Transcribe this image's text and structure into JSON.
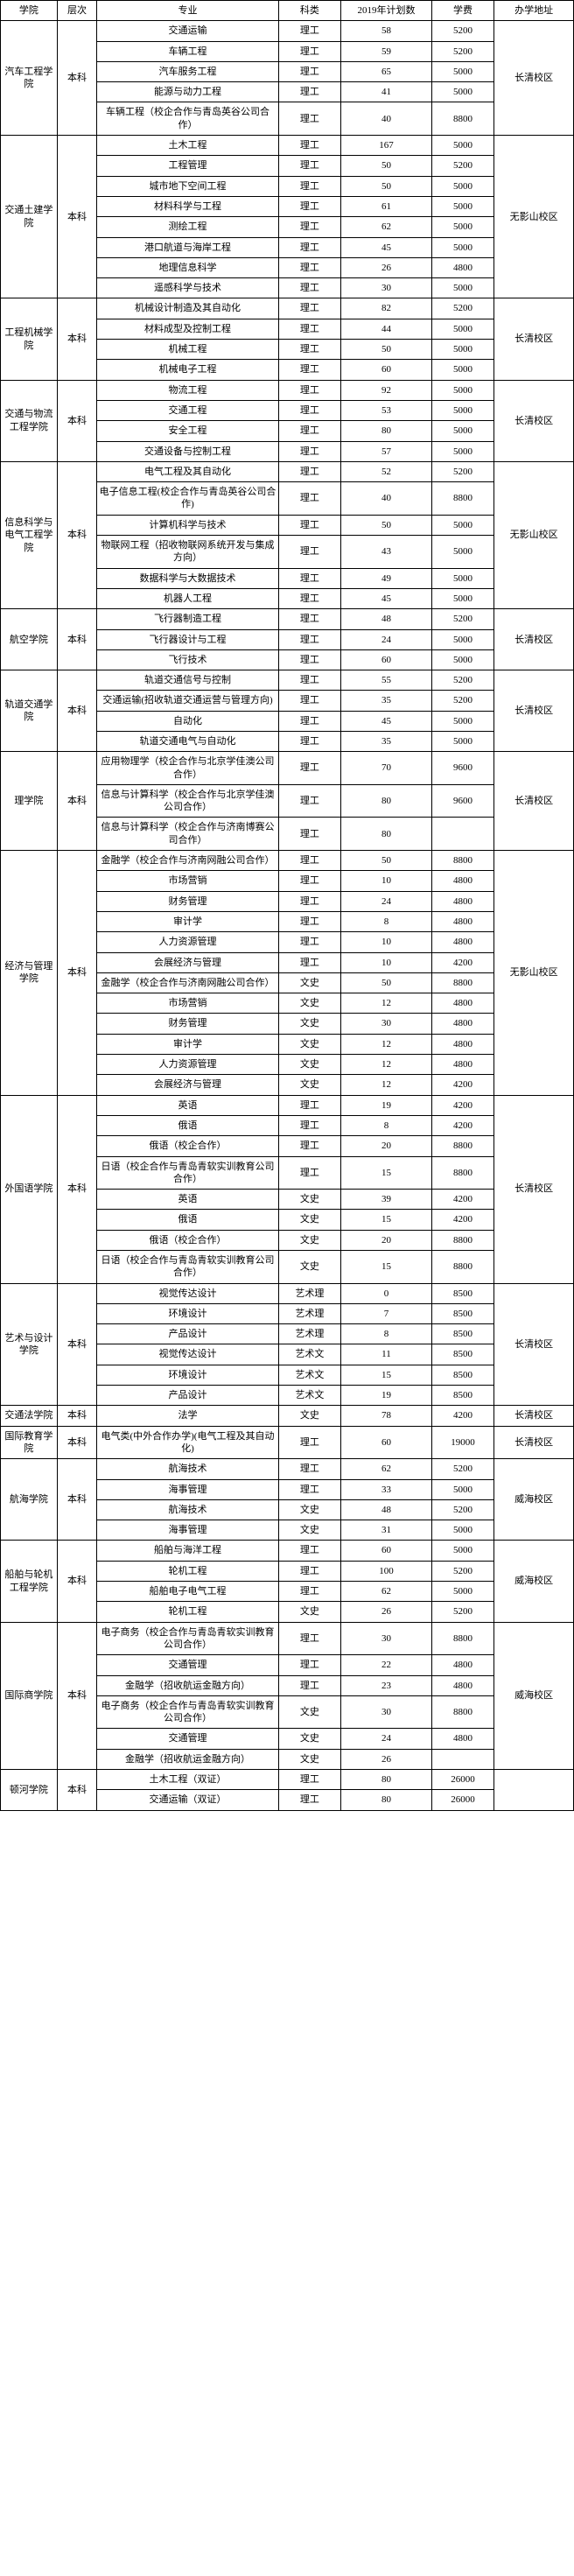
{
  "headers": {
    "college": "学院",
    "level": "层次",
    "major": "专业",
    "category": "科类",
    "plan": "2019年计划数",
    "fee": "学费",
    "campus": "办学地址"
  },
  "colleges": [
    {
      "name": "汽车工程学院",
      "level": "本科",
      "campus": "长清校区",
      "rows": [
        {
          "major": "交通运输",
          "cat": "理工",
          "plan": "58",
          "fee": "5200"
        },
        {
          "major": "车辆工程",
          "cat": "理工",
          "plan": "59",
          "fee": "5200"
        },
        {
          "major": "汽车服务工程",
          "cat": "理工",
          "plan": "65",
          "fee": "5000"
        },
        {
          "major": "能源与动力工程",
          "cat": "理工",
          "plan": "41",
          "fee": "5000"
        },
        {
          "major": "车辆工程（校企合作与青岛英谷公司合作）",
          "cat": "理工",
          "plan": "40",
          "fee": "8800"
        }
      ]
    },
    {
      "name": "交通土建学院",
      "level": "本科",
      "campus": "无影山校区",
      "rows": [
        {
          "major": "土木工程",
          "cat": "理工",
          "plan": "167",
          "fee": "5000"
        },
        {
          "major": "工程管理",
          "cat": "理工",
          "plan": "50",
          "fee": "5200"
        },
        {
          "major": "城市地下空间工程",
          "cat": "理工",
          "plan": "50",
          "fee": "5000"
        },
        {
          "major": "材料科学与工程",
          "cat": "理工",
          "plan": "61",
          "fee": "5000"
        },
        {
          "major": "测绘工程",
          "cat": "理工",
          "plan": "62",
          "fee": "5000"
        },
        {
          "major": "港口航道与海岸工程",
          "cat": "理工",
          "plan": "45",
          "fee": "5000"
        },
        {
          "major": "地理信息科学",
          "cat": "理工",
          "plan": "26",
          "fee": "4800"
        },
        {
          "major": "遥感科学与技术",
          "cat": "理工",
          "plan": "30",
          "fee": "5000"
        }
      ]
    },
    {
      "name": "工程机械学院",
      "level": "本科",
      "campus": "长清校区",
      "rows": [
        {
          "major": "机械设计制造及其自动化",
          "cat": "理工",
          "plan": "82",
          "fee": "5200"
        },
        {
          "major": "材料成型及控制工程",
          "cat": "理工",
          "plan": "44",
          "fee": "5000"
        },
        {
          "major": "机械工程",
          "cat": "理工",
          "plan": "50",
          "fee": "5000"
        },
        {
          "major": "机械电子工程",
          "cat": "理工",
          "plan": "60",
          "fee": "5000"
        }
      ]
    },
    {
      "name": "交通与物流工程学院",
      "level": "本科",
      "campus": "长清校区",
      "rows": [
        {
          "major": "物流工程",
          "cat": "理工",
          "plan": "92",
          "fee": "5000"
        },
        {
          "major": "交通工程",
          "cat": "理工",
          "plan": "53",
          "fee": "5000"
        },
        {
          "major": "安全工程",
          "cat": "理工",
          "plan": "80",
          "fee": "5000"
        },
        {
          "major": "交通设备与控制工程",
          "cat": "理工",
          "plan": "57",
          "fee": "5000"
        }
      ]
    },
    {
      "name": "信息科学与电气工程学院",
      "level": "本科",
      "campus": "无影山校区",
      "rows": [
        {
          "major": "电气工程及其自动化",
          "cat": "理工",
          "plan": "52",
          "fee": "5200"
        },
        {
          "major": "电子信息工程(校企合作与青岛英谷公司合作)",
          "cat": "理工",
          "plan": "40",
          "fee": "8800"
        },
        {
          "major": "计算机科学与技术",
          "cat": "理工",
          "plan": "50",
          "fee": "5000"
        },
        {
          "major": "物联网工程（招收物联网系统开发与集成方向）",
          "cat": "理工",
          "plan": "43",
          "fee": "5000"
        },
        {
          "major": "数据科学与大数据技术",
          "cat": "理工",
          "plan": "49",
          "fee": "5000"
        },
        {
          "major": "机器人工程",
          "cat": "理工",
          "plan": "45",
          "fee": "5000"
        }
      ]
    },
    {
      "name": "航空学院",
      "level": "本科",
      "campus": "长清校区",
      "rows": [
        {
          "major": "飞行器制造工程",
          "cat": "理工",
          "plan": "48",
          "fee": "5200"
        },
        {
          "major": "飞行器设计与工程",
          "cat": "理工",
          "plan": "24",
          "fee": "5000"
        },
        {
          "major": "飞行技术",
          "cat": "理工",
          "plan": "60",
          "fee": "5000"
        }
      ]
    },
    {
      "name": "轨道交通学院",
      "level": "本科",
      "campus": "长清校区",
      "rows": [
        {
          "major": "轨道交通信号与控制",
          "cat": "理工",
          "plan": "55",
          "fee": "5200"
        },
        {
          "major": "交通运输(招收轨道交通运营与管理方向)",
          "cat": "理工",
          "plan": "35",
          "fee": "5200"
        },
        {
          "major": "自动化",
          "cat": "理工",
          "plan": "45",
          "fee": "5000"
        },
        {
          "major": "轨道交通电气与自动化",
          "cat": "理工",
          "plan": "35",
          "fee": "5000"
        }
      ]
    },
    {
      "name": "理学院",
      "level": "本科",
      "campus": "长清校区",
      "rows": [
        {
          "major": "应用物理学（校企合作与北京学佳澳公司合作）",
          "cat": "理工",
          "plan": "70",
          "fee": "9600"
        },
        {
          "major": "信息与计算科学（校企合作与北京学佳澳公司合作）",
          "cat": "理工",
          "plan": "80",
          "fee": "9600"
        },
        {
          "major": "信息与计算科学（校企合作与济南博赛公司合作）",
          "cat": "理工",
          "plan": "80",
          "fee": ""
        }
      ]
    },
    {
      "name": "经济与管理学院",
      "level": "本科",
      "campus": "无影山校区",
      "rows": [
        {
          "major": "金融学（校企合作与济南网融公司合作）",
          "cat": "理工",
          "plan": "50",
          "fee": "8800"
        },
        {
          "major": "市场营销",
          "cat": "理工",
          "plan": "10",
          "fee": "4800"
        },
        {
          "major": "财务管理",
          "cat": "理工",
          "plan": "24",
          "fee": "4800"
        },
        {
          "major": "审计学",
          "cat": "理工",
          "plan": "8",
          "fee": "4800"
        },
        {
          "major": "人力资源管理",
          "cat": "理工",
          "plan": "10",
          "fee": "4800"
        },
        {
          "major": "会展经济与管理",
          "cat": "理工",
          "plan": "10",
          "fee": "4200"
        },
        {
          "major": "金融学（校企合作与济南网融公司合作）",
          "cat": "文史",
          "plan": "50",
          "fee": "8800"
        },
        {
          "major": "市场营销",
          "cat": "文史",
          "plan": "12",
          "fee": "4800"
        },
        {
          "major": "财务管理",
          "cat": "文史",
          "plan": "30",
          "fee": "4800"
        },
        {
          "major": "审计学",
          "cat": "文史",
          "plan": "12",
          "fee": "4800"
        },
        {
          "major": "人力资源管理",
          "cat": "文史",
          "plan": "12",
          "fee": "4800"
        },
        {
          "major": "会展经济与管理",
          "cat": "文史",
          "plan": "12",
          "fee": "4200"
        }
      ]
    },
    {
      "name": "外国语学院",
      "level": "本科",
      "campus": "长清校区",
      "rows": [
        {
          "major": "英语",
          "cat": "理工",
          "plan": "19",
          "fee": "4200"
        },
        {
          "major": "俄语",
          "cat": "理工",
          "plan": "8",
          "fee": "4200"
        },
        {
          "major": "俄语（校企合作）",
          "cat": "理工",
          "plan": "20",
          "fee": "8800"
        },
        {
          "major": "日语（校企合作与青岛青软实训教育公司合作）",
          "cat": "理工",
          "plan": "15",
          "fee": "8800"
        },
        {
          "major": "英语",
          "cat": "文史",
          "plan": "39",
          "fee": "4200"
        },
        {
          "major": "俄语",
          "cat": "文史",
          "plan": "15",
          "fee": "4200"
        },
        {
          "major": "俄语（校企合作）",
          "cat": "文史",
          "plan": "20",
          "fee": "8800"
        },
        {
          "major": "日语（校企合作与青岛青软实训教育公司合作）",
          "cat": "文史",
          "plan": "15",
          "fee": "8800"
        }
      ]
    },
    {
      "name": "艺术与设计学院",
      "level": "本科",
      "campus": "长清校区",
      "rows": [
        {
          "major": "视觉传达设计",
          "cat": "艺术理",
          "plan": "0",
          "fee": "8500"
        },
        {
          "major": "环境设计",
          "cat": "艺术理",
          "plan": "7",
          "fee": "8500"
        },
        {
          "major": "产品设计",
          "cat": "艺术理",
          "plan": "8",
          "fee": "8500"
        },
        {
          "major": "视觉传达设计",
          "cat": "艺术文",
          "plan": "11",
          "fee": "8500"
        },
        {
          "major": "环境设计",
          "cat": "艺术文",
          "plan": "15",
          "fee": "8500"
        },
        {
          "major": "产品设计",
          "cat": "艺术文",
          "plan": "19",
          "fee": "8500"
        }
      ]
    },
    {
      "name": "交通法学院",
      "level": "本科",
      "campus": "长清校区",
      "rows": [
        {
          "major": "法学",
          "cat": "文史",
          "plan": "78",
          "fee": "4200"
        }
      ]
    },
    {
      "name": "国际教育学院",
      "level": "本科",
      "campus": "长清校区",
      "rows": [
        {
          "major": "电气类(中外合作办学)(电气工程及其自动化)",
          "cat": "理工",
          "plan": "60",
          "fee": "19000"
        }
      ]
    },
    {
      "name": "航海学院",
      "level": "本科",
      "campus": "威海校区",
      "rows": [
        {
          "major": "航海技术",
          "cat": "理工",
          "plan": "62",
          "fee": "5200"
        },
        {
          "major": "海事管理",
          "cat": "理工",
          "plan": "33",
          "fee": "5000"
        },
        {
          "major": "航海技术",
          "cat": "文史",
          "plan": "48",
          "fee": "5200"
        },
        {
          "major": "海事管理",
          "cat": "文史",
          "plan": "31",
          "fee": "5000"
        }
      ]
    },
    {
      "name": "船舶与轮机工程学院",
      "level": "本科",
      "campus": "威海校区",
      "rows": [
        {
          "major": "船舶与海洋工程",
          "cat": "理工",
          "plan": "60",
          "fee": "5000"
        },
        {
          "major": "轮机工程",
          "cat": "理工",
          "plan": "100",
          "fee": "5200"
        },
        {
          "major": "船舶电子电气工程",
          "cat": "理工",
          "plan": "62",
          "fee": "5000"
        },
        {
          "major": "轮机工程",
          "cat": "文史",
          "plan": "26",
          "fee": "5200"
        }
      ]
    },
    {
      "name": "国际商学院",
      "level": "本科",
      "campus": "威海校区",
      "rows": [
        {
          "major": "电子商务（校企合作与青岛青软实训教育公司合作）",
          "cat": "理工",
          "plan": "30",
          "fee": "8800"
        },
        {
          "major": "交通管理",
          "cat": "理工",
          "plan": "22",
          "fee": "4800"
        },
        {
          "major": "金融学（招收航运金融方向）",
          "cat": "理工",
          "plan": "23",
          "fee": "4800"
        },
        {
          "major": "电子商务（校企合作与青岛青软实训教育公司合作）",
          "cat": "文史",
          "plan": "30",
          "fee": "8800"
        },
        {
          "major": "交通管理",
          "cat": "文史",
          "plan": "24",
          "fee": "4800"
        },
        {
          "major": "金融学（招收航运金融方向）",
          "cat": "文史",
          "plan": "26",
          "fee": ""
        }
      ]
    },
    {
      "name": "顿河学院",
      "level": "本科",
      "campus": "",
      "rows": [
        {
          "major": "土木工程（双证）",
          "cat": "理工",
          "plan": "80",
          "fee": "26000"
        },
        {
          "major": "交通运输（双证）",
          "cat": "理工",
          "plan": "80",
          "fee": "26000"
        }
      ]
    }
  ]
}
